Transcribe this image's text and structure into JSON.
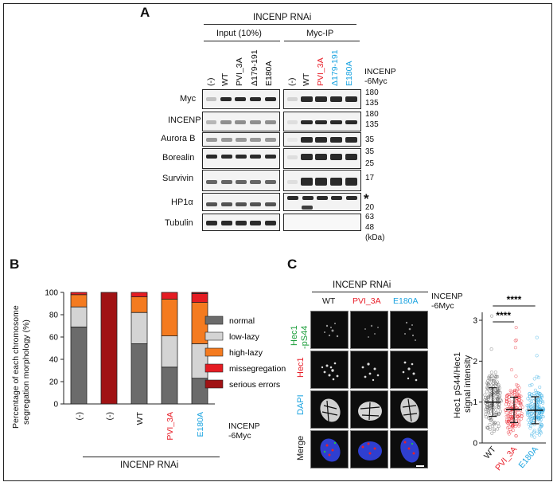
{
  "panel_a": {
    "letter": "A",
    "header": "INCENP RNAi",
    "input_header": "Input (10%)",
    "ip_header": "Myc-IP",
    "lanes_input": [
      "(-)",
      "WT",
      "PVI_3A",
      "Δ179-191",
      "E180A"
    ],
    "lanes_ip": [
      "(-)",
      "WT",
      "PVI_3A",
      "Δ179-191",
      "E180A"
    ],
    "lane_label": [
      "INCENP",
      "-6Myc"
    ],
    "rows": [
      "Myc",
      "INCENP",
      "Aurora B",
      "Borealin",
      "Survivin",
      "HP1α",
      "Tubulin"
    ],
    "mw": {
      "myc": [
        "180",
        "135"
      ],
      "incenp": [
        "180",
        "135"
      ],
      "aurora": [
        "35"
      ],
      "borealin": [
        "35",
        "25"
      ],
      "survivin": [
        "17"
      ],
      "hp1": [
        "*",
        "20"
      ],
      "tubulin": [
        "63",
        "48"
      ]
    },
    "kda": "(kDa)",
    "colors": {
      "pvi": "#e8202a",
      "del": "#1aa3e0",
      "e180": "#1aa3e0"
    }
  },
  "panel_b": {
    "letter": "B",
    "ylabel": [
      "Percentage of each chromosome",
      "segregation morphology (%)"
    ],
    "xgroup_label": "INCENP RNAi",
    "lane_label": [
      "INCENP",
      "-6Myc"
    ],
    "chart_data": {
      "type": "bar",
      "stacked": true,
      "categories": [
        "(-)",
        "(-)",
        "WT",
        "PVI_3A",
        "E180A"
      ],
      "category_colors": [
        "#111111",
        "#111111",
        "#111111",
        "#e8202a",
        "#1aa3e0"
      ],
      "ylim": [
        0,
        100
      ],
      "yticks": [
        0,
        20,
        40,
        60,
        80,
        100
      ],
      "series": [
        {
          "name": "normal",
          "color": "#6b6b6b",
          "values": [
            69,
            0,
            54,
            33,
            23
          ]
        },
        {
          "name": "low-lazy",
          "color": "#d4d4d4",
          "values": [
            18,
            0,
            28,
            28,
            31
          ]
        },
        {
          "name": "high-lazy",
          "color": "#f47b20",
          "values": [
            11,
            0,
            14,
            33,
            37
          ]
        },
        {
          "name": "missegregation",
          "color": "#e51c23",
          "values": [
            2,
            0,
            4,
            6,
            8
          ]
        },
        {
          "name": "serious errors",
          "color": "#a01214",
          "values": [
            0,
            100,
            0,
            0,
            1
          ]
        }
      ]
    }
  },
  "panel_c": {
    "letter": "C",
    "header": "INCENP RNAi",
    "columns": [
      "WT",
      "PVI_3A",
      "E180A"
    ],
    "column_colors": [
      "#111111",
      "#e8202a",
      "#1aa3e0"
    ],
    "lane_label": [
      "INCENP",
      "-6Myc"
    ],
    "row_labels": [
      {
        "text": "Hec1\n-pS44",
        "color": "#1b9e3a"
      },
      {
        "text": "Hec1",
        "color": "#e8202a"
      },
      {
        "text": "DAPI",
        "color": "#1aa3e0"
      },
      {
        "text": "Merge",
        "color": "#111111"
      }
    ],
    "significance": [
      "****",
      "****"
    ],
    "chart_data": {
      "type": "scatter",
      "categories": [
        "WT",
        "PVI_3A",
        "E180A"
      ],
      "series": [
        {
          "name": "WT",
          "color": "#555555",
          "mean": 1.0,
          "sd_low": 0.65,
          "sd_high": 1.35,
          "max": 3.2
        },
        {
          "name": "PVI_3A",
          "color": "#e8202a",
          "mean": 0.82,
          "sd_low": 0.5,
          "sd_high": 1.12,
          "max": 3.05
        },
        {
          "name": "E180A",
          "color": "#1aa3e0",
          "mean": 0.8,
          "sd_low": 0.47,
          "sd_high": 1.13,
          "max": 2.75
        }
      ],
      "ylabel": [
        "Hec1 pS44/Hec1",
        "signal intensity"
      ],
      "ylim": [
        0,
        3
      ],
      "yticks": [
        0,
        1,
        2,
        3
      ]
    }
  }
}
